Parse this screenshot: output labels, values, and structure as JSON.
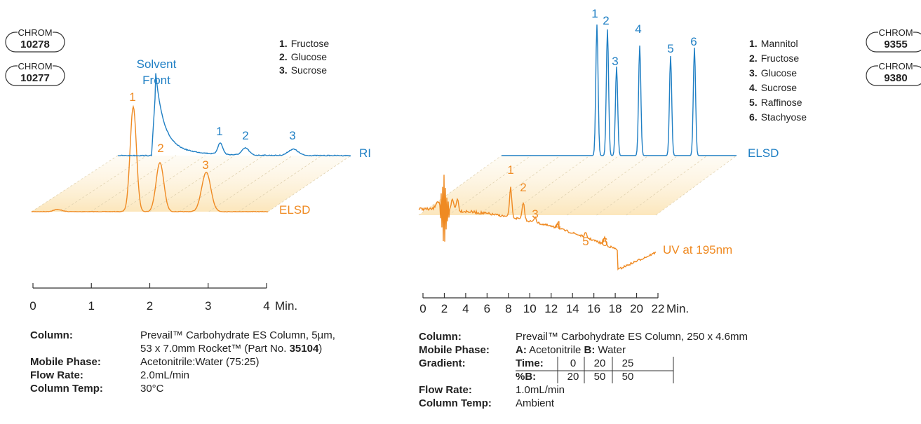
{
  "left": {
    "badges": [
      {
        "label": "CHROM",
        "number": "10278"
      },
      {
        "label": "CHROM",
        "number": "10277"
      }
    ],
    "legend": [
      {
        "num": "1.",
        "name": "Fructose"
      },
      {
        "num": "2.",
        "name": "Glucose"
      },
      {
        "num": "3.",
        "name": "Sucrose"
      }
    ],
    "annotation": [
      "Solvent",
      "Front"
    ],
    "peaks_top": [
      "1",
      "2",
      "3"
    ],
    "peaks_bottom": [
      "1",
      "2",
      "3"
    ],
    "trace_labels": [
      "RI",
      "ELSD"
    ],
    "axis": {
      "ticks": [
        "0",
        "1",
        "2",
        "3",
        "4"
      ],
      "unit": "Min."
    },
    "conditions": [
      {
        "label": "Column:",
        "lines": [
          [
            {
              "text": "Prevail™ Carbohydrate ES Column, 5µm,"
            }
          ],
          [
            {
              "text": "53 x 7.0mm Rocket™ (Part No. "
            },
            {
              "text": "35104",
              "bold": true
            },
            {
              "text": ")"
            }
          ]
        ]
      },
      {
        "label": "Mobile Phase:",
        "lines": [
          [
            {
              "text": "Acetonitrile:Water (75:25)"
            }
          ]
        ]
      },
      {
        "label": "Flow Rate:",
        "lines": [
          [
            {
              "text": "2.0mL/min"
            }
          ]
        ]
      },
      {
        "label": "Column Temp:",
        "lines": [
          [
            {
              "text": "30°C"
            }
          ]
        ]
      }
    ]
  },
  "right": {
    "badges": [
      {
        "label": "CHROM",
        "number": "9355"
      },
      {
        "label": "CHROM",
        "number": "9380"
      }
    ],
    "legend": [
      {
        "num": "1.",
        "name": "Mannitol"
      },
      {
        "num": "2.",
        "name": "Fructose"
      },
      {
        "num": "3.",
        "name": "Glucose"
      },
      {
        "num": "4.",
        "name": "Sucrose"
      },
      {
        "num": "5.",
        "name": "Raffinose"
      },
      {
        "num": "6.",
        "name": "Stachyose"
      }
    ],
    "peaks_top": [
      "1",
      "2",
      "3",
      "4",
      "5",
      "6"
    ],
    "peaks_bottom": [
      "1",
      "2",
      "3",
      "4",
      "5",
      "6"
    ],
    "trace_labels": [
      "ELSD",
      "UV at 195nm"
    ],
    "axis": {
      "ticks": [
        "0",
        "2",
        "4",
        "6",
        "8",
        "10",
        "12",
        "14",
        "16",
        "18",
        "20",
        "22"
      ],
      "unit": "Min."
    },
    "conditions": [
      {
        "label": "Column:",
        "lines": [
          [
            {
              "text": "Prevail™ Carbohydrate ES Column, 250 x 4.6mm"
            }
          ]
        ]
      },
      {
        "label": "Mobile Phase:",
        "lines": [
          [
            {
              "text": "A:",
              "bold": true
            },
            {
              "text": " Acetonitrile "
            },
            {
              "text": "B:",
              "bold": true
            },
            {
              "text": " Water"
            }
          ]
        ]
      },
      {
        "label": "Gradient:",
        "table": [
          [
            "Time:",
            "0",
            "20",
            "25"
          ],
          [
            "%B:",
            "20",
            "50",
            "50"
          ]
        ]
      },
      {
        "label": "Flow Rate:",
        "lines": [
          [
            {
              "text": "1.0mL/min"
            }
          ]
        ]
      },
      {
        "label": "Column Temp:",
        "lines": [
          [
            {
              "text": "Ambient"
            }
          ]
        ]
      }
    ]
  }
}
